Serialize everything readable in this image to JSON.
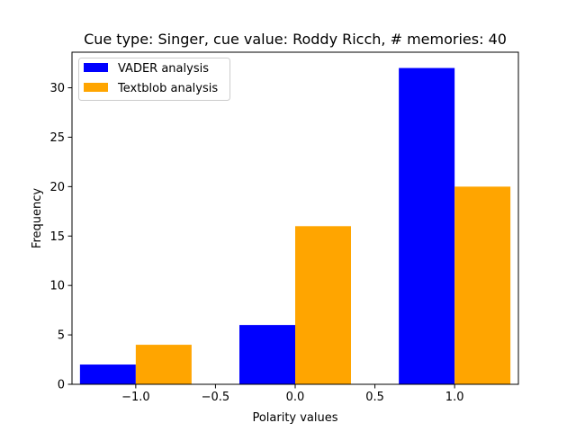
{
  "chart_data": {
    "type": "bar",
    "title": "Cue type: Singer, cue value: Roddy Ricch, # memories: 40",
    "xlabel": "Polarity values",
    "ylabel": "Frequency",
    "xlim": [
      -1.4,
      1.4
    ],
    "ylim": [
      0,
      33.6
    ],
    "xticks": [
      -1.0,
      -0.5,
      0.0,
      0.5,
      1.0
    ],
    "xtick_labels": [
      "−1.0",
      "−0.5",
      "0.0",
      "0.5",
      "1.0"
    ],
    "yticks": [
      0,
      5,
      10,
      15,
      20,
      25,
      30
    ],
    "ytick_labels": [
      "0",
      "5",
      "10",
      "15",
      "20",
      "25",
      "30"
    ],
    "grid": false,
    "legend_position": "upper-left",
    "bar_width": 0.35,
    "x": [
      -1.0,
      0.0,
      1.0
    ],
    "series": [
      {
        "name": "VADER analysis",
        "color": "#0000ff",
        "offset": -0.175,
        "values": [
          2,
          6,
          32
        ]
      },
      {
        "name": "Textblob analysis",
        "color": "#ffa500",
        "offset": 0.175,
        "values": [
          4,
          16,
          20
        ]
      }
    ]
  }
}
